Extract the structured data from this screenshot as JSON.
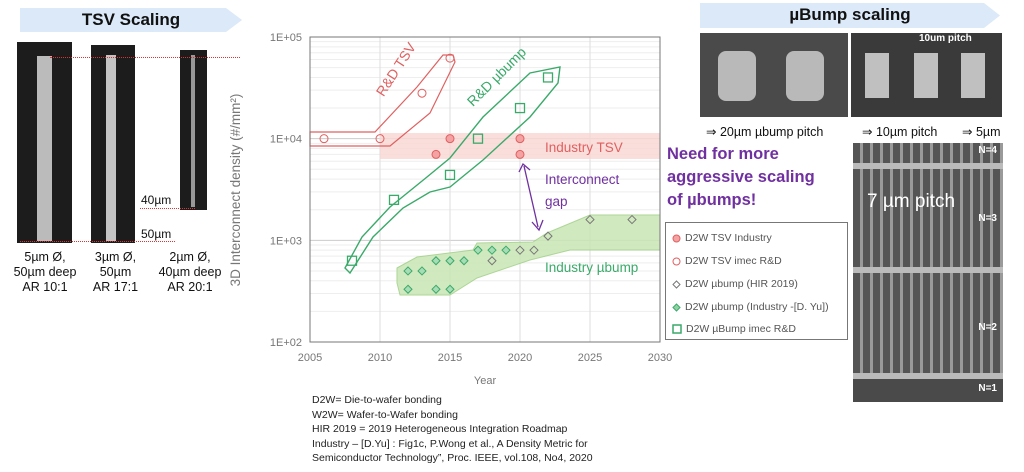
{
  "left_panel": {
    "title": "TSV Scaling",
    "dim_40": "40µm",
    "dim_50": "50µm",
    "captions": [
      [
        "5µm Ø,",
        "50µm deep",
        "AR 10:1"
      ],
      [
        "3µm Ø,",
        "50µm",
        "AR 17:1"
      ],
      [
        "2µm Ø,",
        "40µm deep",
        "AR 20:1"
      ]
    ]
  },
  "right_panel": {
    "title": "µBump scaling",
    "pitch_label": "10um pitch",
    "captions": [
      "⇒ 20µm µbump pitch",
      "⇒ 10µm pitch",
      "⇒ 5µm"
    ],
    "big_image_label": "7 µm pitch",
    "levels": [
      "N=4",
      "N=3",
      "N=2",
      "N=1"
    ],
    "callout": [
      "Need for more",
      "aggressive scaling",
      "of µbumps!"
    ]
  },
  "chart_data": {
    "type": "scatter",
    "xlabel": "Year",
    "ylabel": "3D Interconnect density (#/mm²)",
    "xlim": [
      2005,
      2030
    ],
    "ylim": [
      100,
      100000
    ],
    "yscale": "log",
    "xticks": [
      "2005",
      "2010",
      "2015",
      "2020",
      "2025",
      "2030"
    ],
    "yticks": [
      "1E+02",
      "1E+03",
      "1E+04",
      "1E+05"
    ],
    "grid": true,
    "legend_position": "right",
    "annotations": {
      "rd_tsv": "R&D TSV",
      "rd_ubump": "R&D µbump",
      "industry_tsv": "Industry TSV",
      "gap": [
        "Interconnect",
        "gap"
      ],
      "industry_ubump": "Industry µbump"
    },
    "colors": {
      "tsv": "#e06060",
      "ubump": "#3aaa6a",
      "hir": "#777777",
      "gap": "#7030a0"
    },
    "series": [
      {
        "name": "D2W TSV Industry",
        "marker": "circle-filled",
        "color": "#e06060",
        "points": [
          [
            2014,
            7000
          ],
          [
            2015,
            10000
          ],
          [
            2020,
            10000
          ],
          [
            2020,
            7000
          ]
        ]
      },
      {
        "name": "D2W TSV imec R&D",
        "marker": "circle-open",
        "color": "#e06060",
        "points": [
          [
            2006,
            10000
          ],
          [
            2010,
            10000
          ],
          [
            2013,
            28000
          ],
          [
            2015,
            62000
          ]
        ]
      },
      {
        "name": "D2W µbump (HIR 2019)",
        "marker": "diamond-open",
        "color": "#777777",
        "points": [
          [
            2018,
            630
          ],
          [
            2020,
            800
          ],
          [
            2021,
            800
          ],
          [
            2022,
            1100
          ],
          [
            2025,
            1600
          ],
          [
            2028,
            1600
          ]
        ]
      },
      {
        "name": "D2W µbump (Industry -[D. Yu])",
        "marker": "diamond-filled",
        "color": "#3aaa6a",
        "points": [
          [
            2012,
            500
          ],
          [
            2013,
            500
          ],
          [
            2012,
            330
          ],
          [
            2014,
            330
          ],
          [
            2015,
            330
          ],
          [
            2014,
            630
          ],
          [
            2015,
            630
          ],
          [
            2016,
            630
          ],
          [
            2017,
            800
          ],
          [
            2018,
            800
          ],
          [
            2019,
            800
          ]
        ]
      },
      {
        "name": "D2W µBump imec R&D",
        "marker": "square-open",
        "color": "#3aaa6a",
        "points": [
          [
            2008,
            630
          ],
          [
            2011,
            2500
          ],
          [
            2015,
            4400
          ],
          [
            2017,
            10000
          ],
          [
            2020,
            20000
          ],
          [
            2022,
            40000
          ]
        ]
      }
    ]
  },
  "footnotes": [
    "D2W= Die-to-wafer bonding",
    "W2W= Wafer-to-Wafer bonding",
    "HIR 2019 = 2019 Heterogeneous Integration Roadmap",
    "Industry – [D.Yu] : Fig1c, P.Wong et al., A Density Metric for",
    "Semiconductor Technology”,  Proc. IEEE, vol.108, No4, 2020"
  ]
}
